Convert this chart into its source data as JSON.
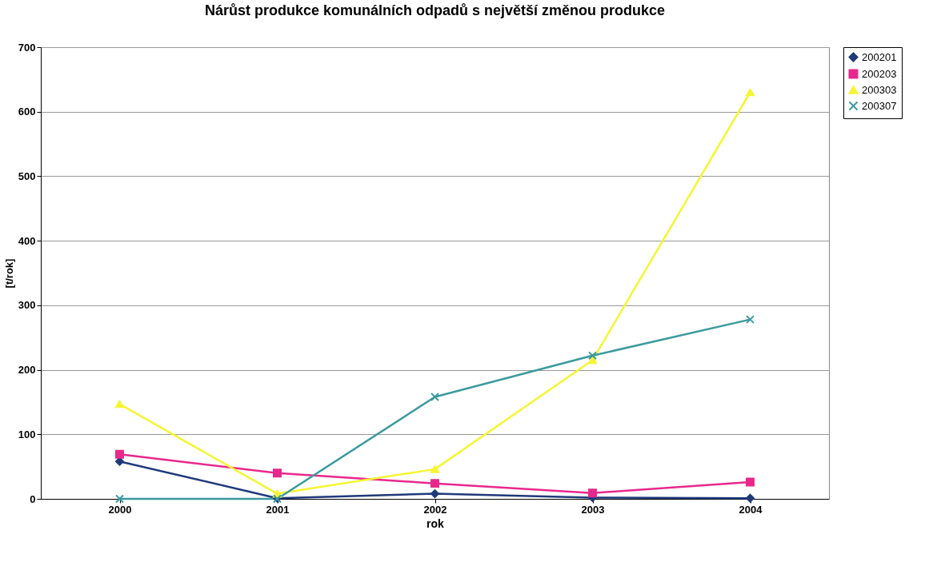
{
  "chart_data": {
    "type": "line",
    "title": "Nárůst produkce komunálních odpadů s největší změnou produkce",
    "xlabel": "rok",
    "ylabel": "[t/rok]",
    "categories": [
      "2000",
      "2001",
      "2002",
      "2003",
      "2004"
    ],
    "series": [
      {
        "name": "200201",
        "color": "#1f3a7a",
        "marker": "diamond",
        "values": [
          58,
          1,
          8,
          2,
          1
        ]
      },
      {
        "name": "200203",
        "color": "#e8288c",
        "marker": "square",
        "values": [
          69,
          40,
          24,
          9,
          26
        ]
      },
      {
        "name": "200303",
        "color": "#f5f532",
        "marker": "triangle",
        "values": [
          147,
          8,
          46,
          215,
          630
        ]
      },
      {
        "name": "200307",
        "color": "#3a9a9e",
        "marker": "cross",
        "values": [
          0,
          0,
          158,
          222,
          278
        ]
      }
    ],
    "ylim": [
      0,
      700
    ],
    "yticks": [
      0,
      100,
      200,
      300,
      400,
      500,
      600,
      700
    ],
    "grid": "y",
    "legend": "right"
  }
}
